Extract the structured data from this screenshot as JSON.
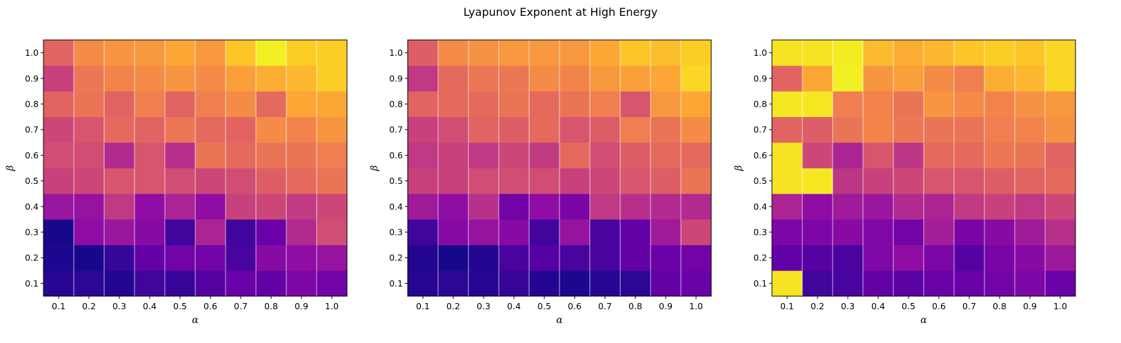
{
  "figure": {
    "title": "Lyapunov Exponent at High Energy",
    "colormap": "plasma"
  },
  "chart_data": [
    {
      "type": "heatmap",
      "title": "",
      "xlabel": "α",
      "ylabel": "β",
      "x": [
        "0.1",
        "0.2",
        "0.3",
        "0.4",
        "0.5",
        "0.6",
        "0.7",
        "0.8",
        "0.9",
        "1.0"
      ],
      "y": [
        "0.1",
        "0.2",
        "0.3",
        "0.4",
        "0.5",
        "0.6",
        "0.7",
        "0.8",
        "0.9",
        "1.0"
      ],
      "vrange": [
        0,
        1
      ],
      "grid": true,
      "values": [
        [
          0.05,
          0.06,
          0.04,
          0.1,
          0.08,
          0.15,
          0.2,
          0.18,
          0.25,
          0.22
        ],
        [
          0.03,
          0.02,
          0.08,
          0.18,
          0.22,
          0.22,
          0.12,
          0.28,
          0.3,
          0.32
        ],
        [
          0.02,
          0.3,
          0.33,
          0.28,
          0.1,
          0.38,
          0.1,
          0.2,
          0.4,
          0.52
        ],
        [
          0.33,
          0.32,
          0.45,
          0.3,
          0.38,
          0.3,
          0.48,
          0.5,
          0.46,
          0.5
        ],
        [
          0.48,
          0.5,
          0.55,
          0.55,
          0.52,
          0.5,
          0.52,
          0.58,
          0.62,
          0.65
        ],
        [
          0.52,
          0.52,
          0.4,
          0.55,
          0.42,
          0.65,
          0.62,
          0.65,
          0.65,
          0.68
        ],
        [
          0.5,
          0.55,
          0.62,
          0.6,
          0.66,
          0.62,
          0.6,
          0.72,
          0.7,
          0.75
        ],
        [
          0.6,
          0.65,
          0.6,
          0.68,
          0.6,
          0.68,
          0.72,
          0.62,
          0.8,
          0.8
        ],
        [
          0.48,
          0.66,
          0.7,
          0.72,
          0.75,
          0.72,
          0.78,
          0.82,
          0.84,
          0.9
        ],
        [
          0.6,
          0.72,
          0.75,
          0.76,
          0.8,
          0.76,
          0.88,
          0.98,
          0.9,
          0.9
        ]
      ]
    },
    {
      "type": "heatmap",
      "title": "",
      "xlabel": "α",
      "ylabel": "β",
      "x": [
        "0.1",
        "0.2",
        "0.3",
        "0.4",
        "0.5",
        "0.6",
        "0.7",
        "0.8",
        "0.9",
        "1.0"
      ],
      "y": [
        "0.1",
        "0.2",
        "0.3",
        "0.4",
        "0.5",
        "0.6",
        "0.7",
        "0.8",
        "0.9",
        "1.0"
      ],
      "vrange": [
        0,
        1
      ],
      "grid": true,
      "values": [
        [
          0.05,
          0.06,
          0.05,
          0.08,
          0.04,
          0.03,
          0.05,
          0.06,
          0.18,
          0.2
        ],
        [
          0.04,
          0.02,
          0.04,
          0.12,
          0.15,
          0.12,
          0.12,
          0.18,
          0.2,
          0.22
        ],
        [
          0.1,
          0.28,
          0.32,
          0.28,
          0.1,
          0.32,
          0.12,
          0.18,
          0.35,
          0.5
        ],
        [
          0.35,
          0.3,
          0.42,
          0.22,
          0.3,
          0.24,
          0.45,
          0.42,
          0.4,
          0.4
        ],
        [
          0.48,
          0.48,
          0.52,
          0.52,
          0.52,
          0.48,
          0.5,
          0.55,
          0.58,
          0.65
        ],
        [
          0.45,
          0.48,
          0.45,
          0.5,
          0.46,
          0.62,
          0.52,
          0.58,
          0.62,
          0.62
        ],
        [
          0.48,
          0.52,
          0.6,
          0.58,
          0.62,
          0.55,
          0.58,
          0.68,
          0.65,
          0.72
        ],
        [
          0.6,
          0.62,
          0.62,
          0.65,
          0.62,
          0.65,
          0.68,
          0.55,
          0.76,
          0.8
        ],
        [
          0.45,
          0.62,
          0.66,
          0.66,
          0.72,
          0.7,
          0.76,
          0.78,
          0.8,
          0.92
        ],
        [
          0.58,
          0.72,
          0.74,
          0.76,
          0.76,
          0.76,
          0.8,
          0.88,
          0.86,
          0.9
        ]
      ]
    },
    {
      "type": "heatmap",
      "title": "",
      "xlabel": "α",
      "ylabel": "β",
      "x": [
        "0.1",
        "0.2",
        "0.3",
        "0.4",
        "0.5",
        "0.6",
        "0.7",
        "0.8",
        "0.9",
        "1.0"
      ],
      "y": [
        "0.1",
        "0.2",
        "0.3",
        "0.4",
        "0.5",
        "0.6",
        "0.7",
        "0.8",
        "0.9",
        "1.0"
      ],
      "vrange": [
        0,
        1
      ],
      "grid": true,
      "values": [
        [
          0.95,
          0.1,
          0.12,
          0.18,
          0.16,
          0.2,
          0.2,
          0.22,
          0.25,
          0.2
        ],
        [
          0.18,
          0.15,
          0.12,
          0.26,
          0.3,
          0.25,
          0.15,
          0.24,
          0.28,
          0.34
        ],
        [
          0.25,
          0.25,
          0.28,
          0.26,
          0.22,
          0.36,
          0.24,
          0.28,
          0.35,
          0.42
        ],
        [
          0.38,
          0.3,
          0.35,
          0.33,
          0.4,
          0.38,
          0.46,
          0.48,
          0.45,
          0.5
        ],
        [
          0.95,
          0.96,
          0.44,
          0.48,
          0.5,
          0.55,
          0.55,
          0.58,
          0.6,
          0.62
        ],
        [
          0.95,
          0.5,
          0.38,
          0.55,
          0.44,
          0.62,
          0.62,
          0.66,
          0.65,
          0.6
        ],
        [
          0.6,
          0.58,
          0.65,
          0.7,
          0.66,
          0.65,
          0.65,
          0.68,
          0.7,
          0.74
        ],
        [
          0.96,
          0.96,
          0.68,
          0.7,
          0.65,
          0.75,
          0.72,
          0.7,
          0.74,
          0.76
        ],
        [
          0.6,
          0.8,
          0.98,
          0.75,
          0.78,
          0.72,
          0.68,
          0.82,
          0.84,
          0.92
        ],
        [
          0.95,
          0.95,
          0.97,
          0.85,
          0.82,
          0.84,
          0.88,
          0.9,
          0.88,
          0.92
        ]
      ]
    }
  ]
}
